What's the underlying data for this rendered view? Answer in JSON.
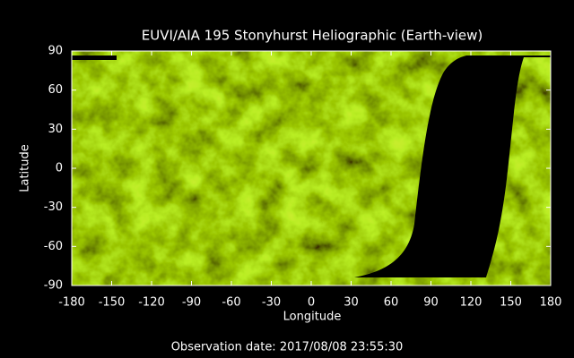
{
  "chart_data": {
    "type": "image",
    "title": "EUVI/AIA 195 Stonyhurst Heliographic (Earth-view)",
    "xlabel": "Longitude",
    "ylabel": "Latitude",
    "xlim": [
      -180,
      180
    ],
    "xticks": [
      -180,
      -150,
      -120,
      -90,
      -60,
      -30,
      0,
      30,
      60,
      90,
      120,
      150,
      180
    ],
    "ylim": [
      -90,
      90
    ],
    "yticks": [
      -90,
      -60,
      -30,
      0,
      30,
      60,
      90
    ],
    "footer": "Observation date: 2017/08/08 23:55:30"
  }
}
